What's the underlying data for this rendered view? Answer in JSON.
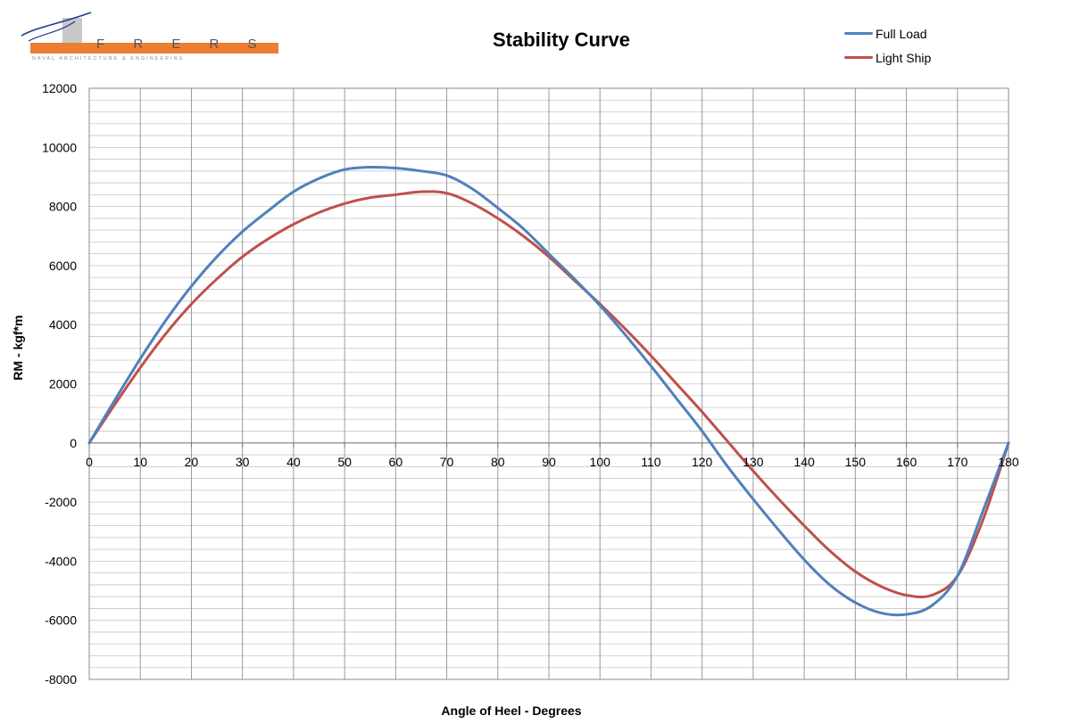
{
  "logo": {
    "brand": "F R E R S",
    "tagline": "NAVAL ARCHITECTURE & ENGINEERING",
    "colors": {
      "bar": "#ED7D31",
      "box": "#C8C8C8",
      "line": "#1F3A8A"
    }
  },
  "chart_data": {
    "type": "line",
    "title": "Stability Curve",
    "xlabel": "Angle of Heel - Degrees",
    "ylabel": "RM  - kgf*m",
    "xlim": [
      0,
      180
    ],
    "ylim": [
      -8000,
      12000
    ],
    "x_ticks": [
      0,
      10,
      20,
      30,
      40,
      50,
      60,
      70,
      80,
      90,
      100,
      110,
      120,
      130,
      140,
      150,
      160,
      170,
      180
    ],
    "y_ticks": [
      -8000,
      -6000,
      -4000,
      -2000,
      0,
      2000,
      4000,
      6000,
      8000,
      10000,
      12000
    ],
    "grid": "on",
    "legend_position": "top-right",
    "series": [
      {
        "name": "Full Load",
        "color": "#4F81BD",
        "x": [
          0,
          5,
          10,
          15,
          20,
          25,
          30,
          35,
          40,
          45,
          50,
          55,
          60,
          65,
          70,
          75,
          80,
          85,
          90,
          95,
          100,
          105,
          110,
          115,
          120,
          125,
          130,
          135,
          140,
          145,
          150,
          155,
          160,
          165,
          170,
          175,
          180
        ],
        "y": [
          0,
          1450,
          2850,
          4150,
          5300,
          6300,
          7150,
          7850,
          8500,
          8950,
          9250,
          9330,
          9300,
          9200,
          9050,
          8600,
          7950,
          7250,
          6400,
          5550,
          4650,
          3650,
          2600,
          1500,
          400,
          -800,
          -1900,
          -2950,
          -3950,
          -4800,
          -5400,
          -5750,
          -5800,
          -5500,
          -4500,
          -2300,
          0
        ]
      },
      {
        "name": "Light Ship",
        "color": "#C0504D",
        "x": [
          0,
          5,
          10,
          15,
          20,
          25,
          30,
          35,
          40,
          45,
          50,
          55,
          60,
          65,
          70,
          75,
          80,
          85,
          90,
          95,
          100,
          105,
          110,
          115,
          120,
          125,
          130,
          135,
          140,
          145,
          150,
          155,
          160,
          165,
          170,
          175,
          180
        ],
        "y": [
          0,
          1300,
          2550,
          3700,
          4700,
          5550,
          6300,
          6900,
          7400,
          7800,
          8100,
          8300,
          8400,
          8500,
          8450,
          8100,
          7600,
          7000,
          6300,
          5500,
          4700,
          3850,
          2950,
          2000,
          1050,
          50,
          -950,
          -1900,
          -2800,
          -3650,
          -4350,
          -4850,
          -5150,
          -5150,
          -4500,
          -2600,
          0
        ]
      }
    ]
  }
}
